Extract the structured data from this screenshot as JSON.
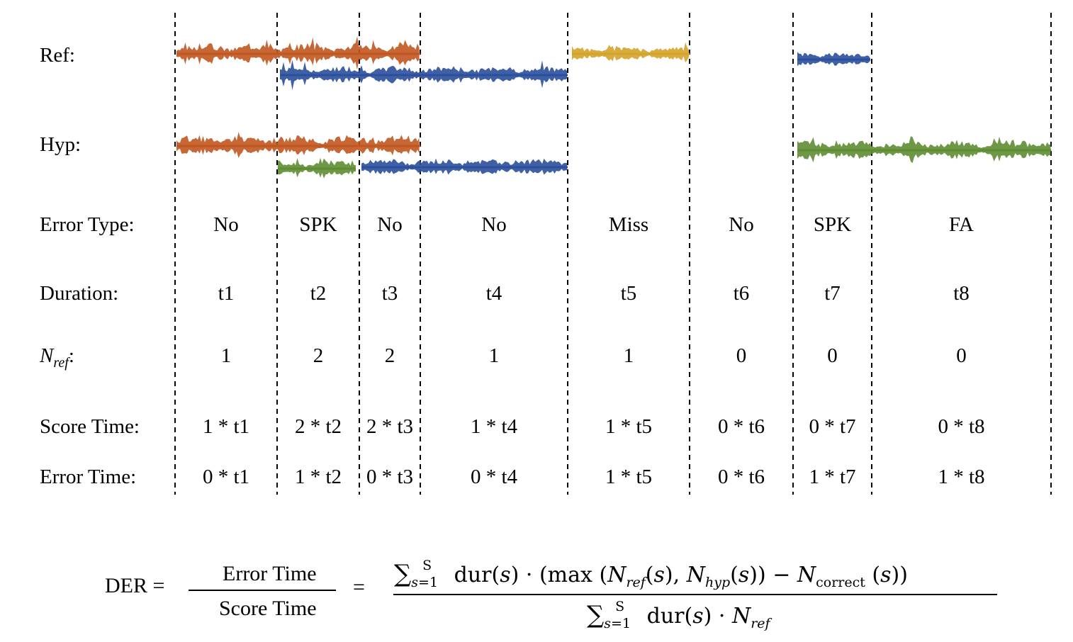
{
  "row_labels": {
    "ref": "Ref:",
    "hyp": "Hyp:",
    "error_type": "Error Type:",
    "duration": "Duration:",
    "nref_main": "N",
    "nref_sub": "ref",
    "nref_colon": ":",
    "score_time": "Score Time:",
    "error_time": "Error Time:"
  },
  "segments": [
    {
      "error_type": "No",
      "duration": "t1",
      "nref": "1",
      "score_time": "1 * t1",
      "error_time": "0 * t1"
    },
    {
      "error_type": "SPK",
      "duration": "t2",
      "nref": "2",
      "score_time": "2 * t2",
      "error_time": "1 * t2"
    },
    {
      "error_type": "No",
      "duration": "t3",
      "nref": "2",
      "score_time": "2 * t3",
      "error_time": "0 * t3"
    },
    {
      "error_type": "No",
      "duration": "t4",
      "nref": "1",
      "score_time": "1 * t4",
      "error_time": "0 * t4"
    },
    {
      "error_type": "Miss",
      "duration": "t5",
      "nref": "1",
      "score_time": "1 * t5",
      "error_time": "1 * t5"
    },
    {
      "error_type": "No",
      "duration": "t6",
      "nref": "0",
      "score_time": "0 * t6",
      "error_time": "0 * t6"
    },
    {
      "error_type": "SPK",
      "duration": "t7",
      "nref": "0",
      "score_time": "0 * t7",
      "error_time": "1 * t7"
    },
    {
      "error_type": "FA",
      "duration": "t8",
      "nref": "0",
      "score_time": "0 * t8",
      "error_time": "1 * t8"
    }
  ],
  "speaker_colors": {
    "orange": "#c0571f",
    "blue": "#2b4f9c",
    "yellow": "#d4a32a",
    "green": "#5e8c32"
  },
  "formula": {
    "lhs": "DER =",
    "numerator": "Error Time",
    "denominator": "Score Time",
    "equals": "=",
    "sum_sub": "s=1",
    "sum_sup": "S",
    "dur": "dur(",
    "s": "s",
    "close": ")",
    "dot": " · ",
    "max": "max",
    "open_paren": " (",
    "n": "N",
    "ref": "ref",
    "hyp": "hyp",
    "correct": "correct",
    "comma": ", ",
    "minus": " − ",
    "close_all": "))"
  }
}
